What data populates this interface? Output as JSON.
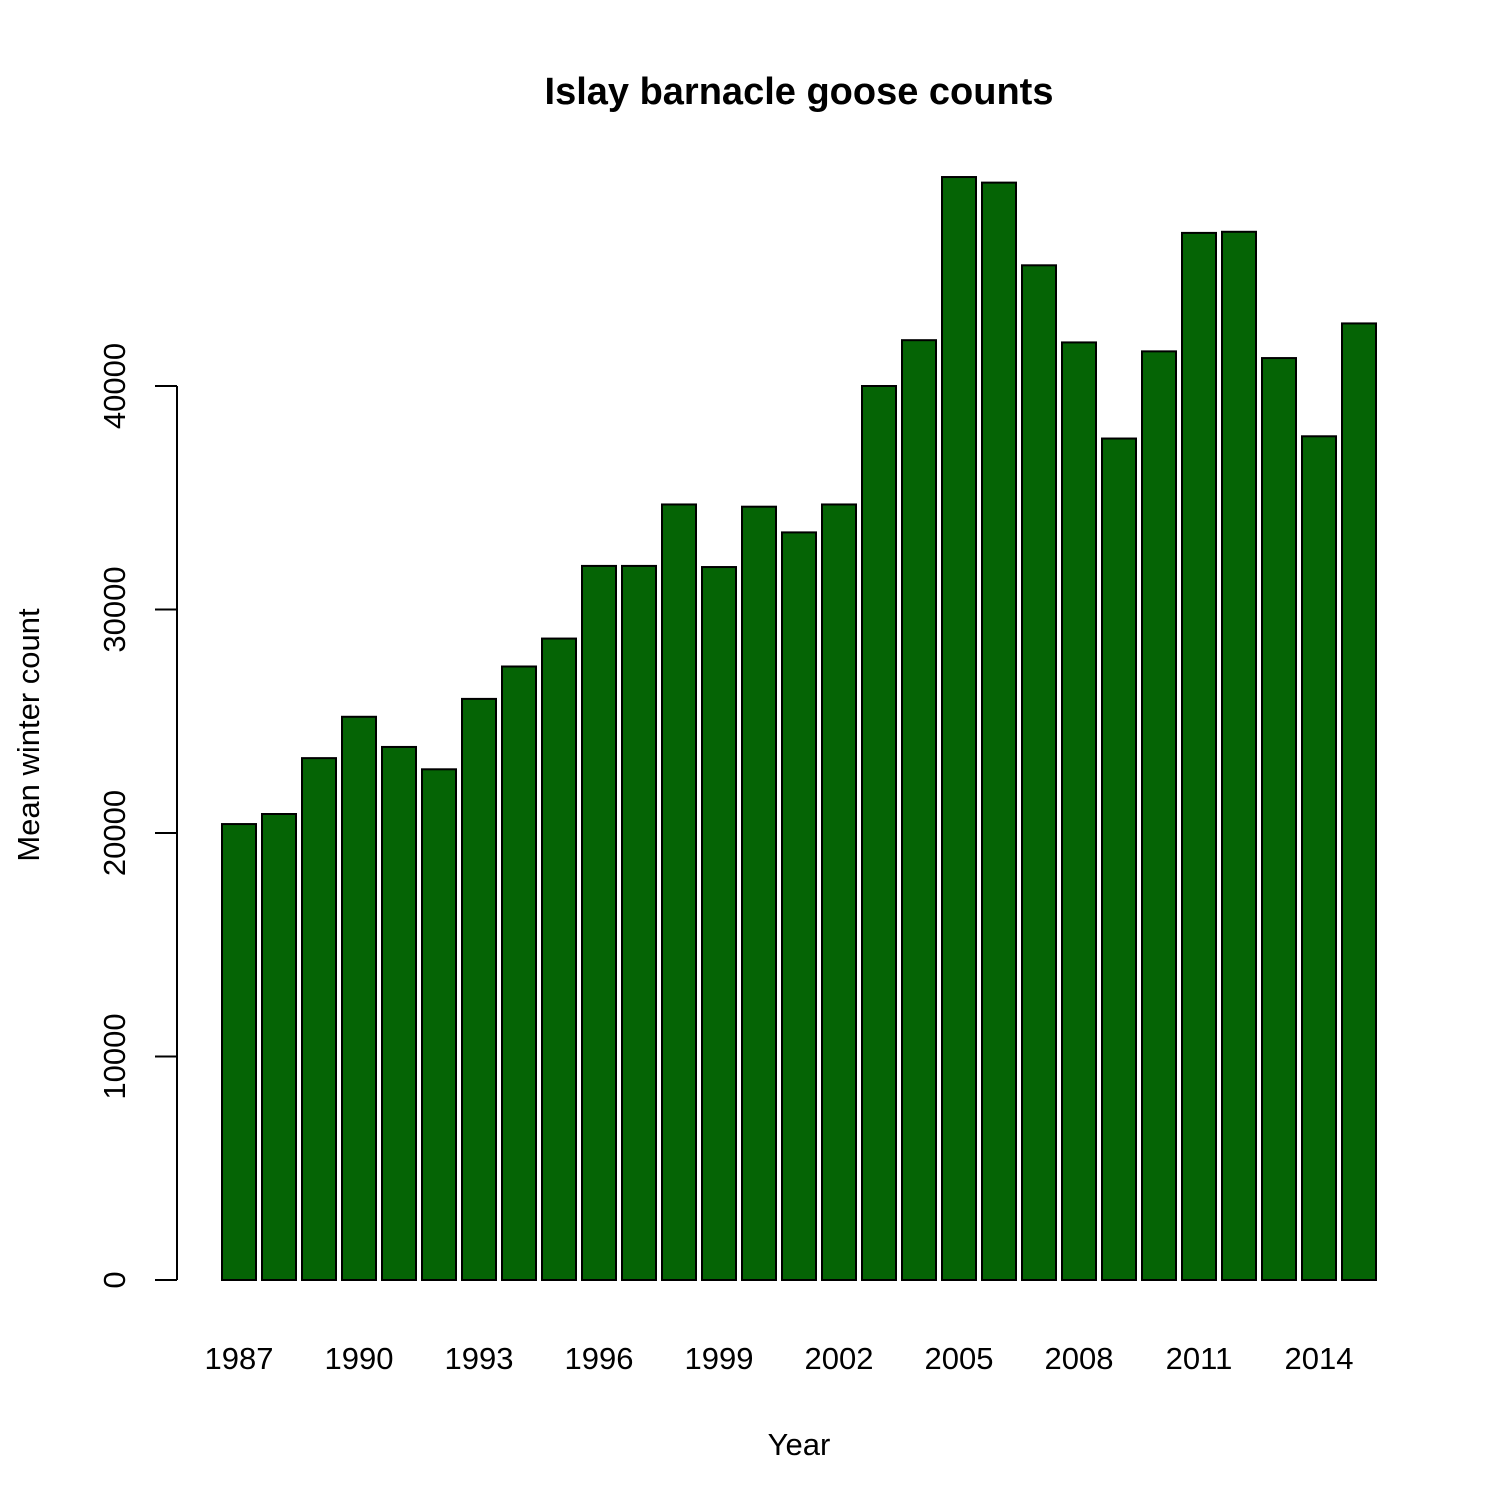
{
  "chart_data": {
    "type": "bar",
    "title": "Islay barnacle goose counts",
    "xlabel": "Year",
    "ylabel": "Mean winter count",
    "ylim": [
      0,
      50000
    ],
    "y_ticks": [
      0,
      10000,
      20000,
      30000,
      40000
    ],
    "y_tick_labels": [
      "0",
      "10000",
      "20000",
      "30000",
      "40000"
    ],
    "grid": false,
    "bar_color": "#056405",
    "categories": [
      "1987",
      "1988",
      "1989",
      "1990",
      "1991",
      "1992",
      "1993",
      "1994",
      "1995",
      "1996",
      "1997",
      "1998",
      "1999",
      "2000",
      "2001",
      "2002",
      "2003",
      "2004",
      "2005",
      "2006",
      "2007",
      "2008",
      "2009",
      "2010",
      "2011",
      "2012",
      "2013",
      "2014",
      "2015"
    ],
    "x_tick_labels": [
      "1987",
      "1990",
      "1993",
      "1996",
      "1999",
      "2002",
      "2005",
      "2008",
      "2011",
      "2014"
    ],
    "values": [
      20400,
      20850,
      23350,
      25200,
      23850,
      22850,
      26000,
      27450,
      28700,
      31950,
      31950,
      34700,
      31900,
      34600,
      33450,
      34700,
      40000,
      42050,
      49350,
      49100,
      45400,
      41950,
      37650,
      41550,
      46850,
      46900,
      41250,
      37750,
      42800
    ]
  }
}
